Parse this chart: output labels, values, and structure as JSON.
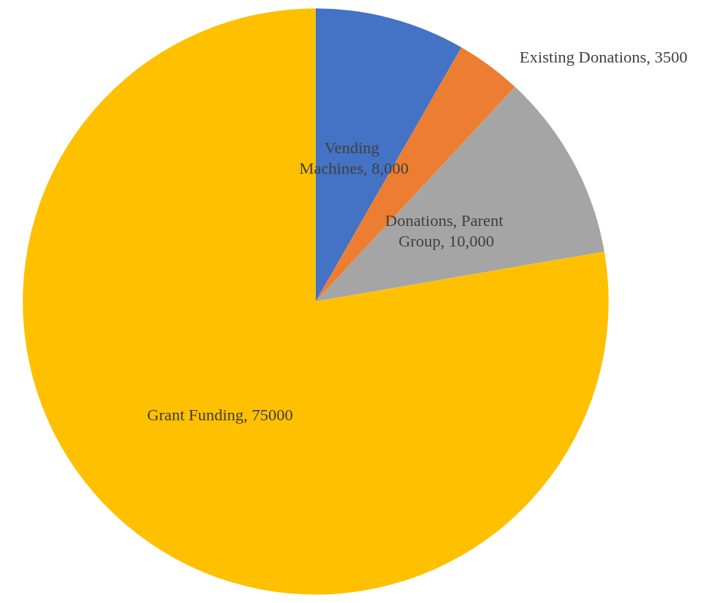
{
  "chart_data": {
    "type": "pie",
    "categories": [
      "Vending Machines",
      "Existing Donations",
      "Donations, Parent Group",
      "Grant Funding"
    ],
    "values": [
      8000,
      3500,
      10000,
      75000
    ],
    "value_labels": [
      "8,000",
      "3500",
      "10,000",
      "75000"
    ],
    "colors": [
      "#4472c4",
      "#ed7d31",
      "#a5a5a5",
      "#ffc000"
    ],
    "legend": false
  }
}
